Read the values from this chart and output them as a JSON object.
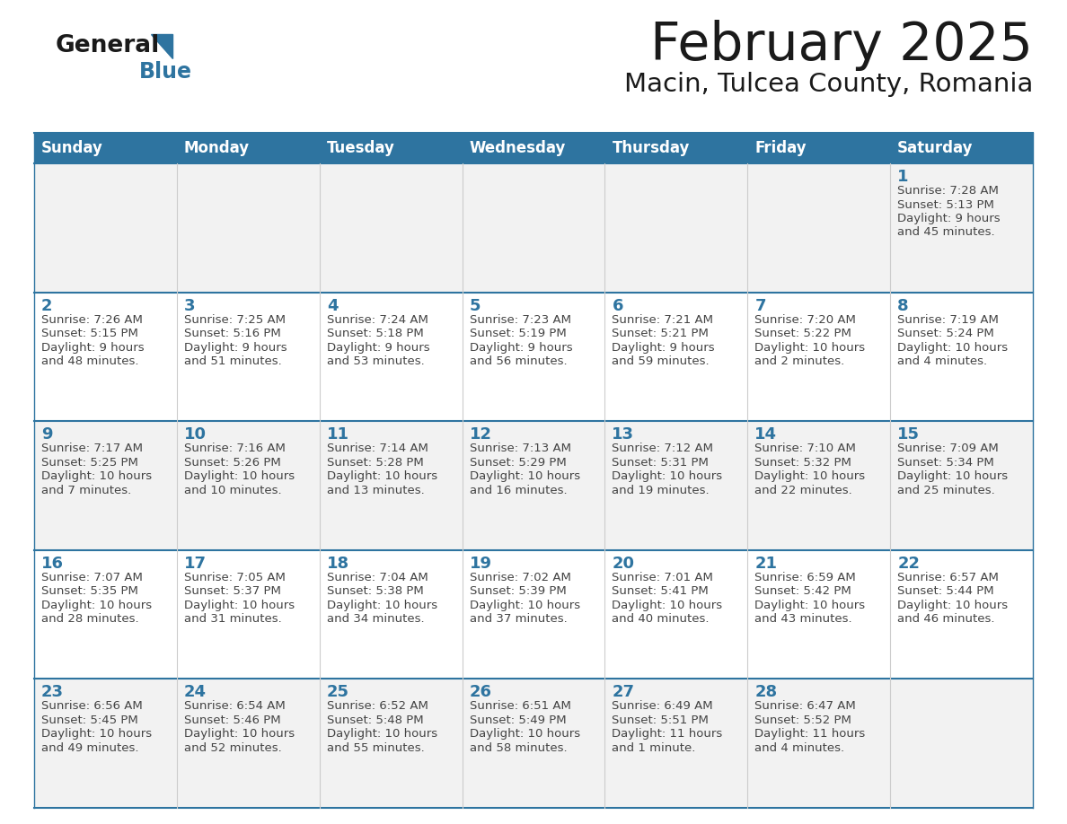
{
  "title": "February 2025",
  "subtitle": "Macin, Tulcea County, Romania",
  "days_of_week": [
    "Sunday",
    "Monday",
    "Tuesday",
    "Wednesday",
    "Thursday",
    "Friday",
    "Saturday"
  ],
  "header_bg": "#2E74A0",
  "header_text_color": "#FFFFFF",
  "separator_color": "#2E74A0",
  "title_color": "#1a1a1a",
  "subtitle_color": "#1a1a1a",
  "day_number_color": "#2E74A0",
  "cell_text_color": "#444444",
  "row_bg": [
    "#F2F2F2",
    "#FFFFFF",
    "#F2F2F2",
    "#FFFFFF",
    "#F2F2F2"
  ],
  "empty_row_bg": "#F2F2F2",
  "logo_general_color": "#1a1a1a",
  "logo_blue_color": "#2E74A0",
  "logo_triangle_color": "#2E74A0",
  "calendar_data": [
    [
      {
        "day": null,
        "sunrise": null,
        "sunset": null,
        "daylight": null
      },
      {
        "day": null,
        "sunrise": null,
        "sunset": null,
        "daylight": null
      },
      {
        "day": null,
        "sunrise": null,
        "sunset": null,
        "daylight": null
      },
      {
        "day": null,
        "sunrise": null,
        "sunset": null,
        "daylight": null
      },
      {
        "day": null,
        "sunrise": null,
        "sunset": null,
        "daylight": null
      },
      {
        "day": null,
        "sunrise": null,
        "sunset": null,
        "daylight": null
      },
      {
        "day": 1,
        "sunrise": "7:28 AM",
        "sunset": "5:13 PM",
        "daylight": "9 hours\nand 45 minutes."
      }
    ],
    [
      {
        "day": 2,
        "sunrise": "7:26 AM",
        "sunset": "5:15 PM",
        "daylight": "9 hours\nand 48 minutes."
      },
      {
        "day": 3,
        "sunrise": "7:25 AM",
        "sunset": "5:16 PM",
        "daylight": "9 hours\nand 51 minutes."
      },
      {
        "day": 4,
        "sunrise": "7:24 AM",
        "sunset": "5:18 PM",
        "daylight": "9 hours\nand 53 minutes."
      },
      {
        "day": 5,
        "sunrise": "7:23 AM",
        "sunset": "5:19 PM",
        "daylight": "9 hours\nand 56 minutes."
      },
      {
        "day": 6,
        "sunrise": "7:21 AM",
        "sunset": "5:21 PM",
        "daylight": "9 hours\nand 59 minutes."
      },
      {
        "day": 7,
        "sunrise": "7:20 AM",
        "sunset": "5:22 PM",
        "daylight": "10 hours\nand 2 minutes."
      },
      {
        "day": 8,
        "sunrise": "7:19 AM",
        "sunset": "5:24 PM",
        "daylight": "10 hours\nand 4 minutes."
      }
    ],
    [
      {
        "day": 9,
        "sunrise": "7:17 AM",
        "sunset": "5:25 PM",
        "daylight": "10 hours\nand 7 minutes."
      },
      {
        "day": 10,
        "sunrise": "7:16 AM",
        "sunset": "5:26 PM",
        "daylight": "10 hours\nand 10 minutes."
      },
      {
        "day": 11,
        "sunrise": "7:14 AM",
        "sunset": "5:28 PM",
        "daylight": "10 hours\nand 13 minutes."
      },
      {
        "day": 12,
        "sunrise": "7:13 AM",
        "sunset": "5:29 PM",
        "daylight": "10 hours\nand 16 minutes."
      },
      {
        "day": 13,
        "sunrise": "7:12 AM",
        "sunset": "5:31 PM",
        "daylight": "10 hours\nand 19 minutes."
      },
      {
        "day": 14,
        "sunrise": "7:10 AM",
        "sunset": "5:32 PM",
        "daylight": "10 hours\nand 22 minutes."
      },
      {
        "day": 15,
        "sunrise": "7:09 AM",
        "sunset": "5:34 PM",
        "daylight": "10 hours\nand 25 minutes."
      }
    ],
    [
      {
        "day": 16,
        "sunrise": "7:07 AM",
        "sunset": "5:35 PM",
        "daylight": "10 hours\nand 28 minutes."
      },
      {
        "day": 17,
        "sunrise": "7:05 AM",
        "sunset": "5:37 PM",
        "daylight": "10 hours\nand 31 minutes."
      },
      {
        "day": 18,
        "sunrise": "7:04 AM",
        "sunset": "5:38 PM",
        "daylight": "10 hours\nand 34 minutes."
      },
      {
        "day": 19,
        "sunrise": "7:02 AM",
        "sunset": "5:39 PM",
        "daylight": "10 hours\nand 37 minutes."
      },
      {
        "day": 20,
        "sunrise": "7:01 AM",
        "sunset": "5:41 PM",
        "daylight": "10 hours\nand 40 minutes."
      },
      {
        "day": 21,
        "sunrise": "6:59 AM",
        "sunset": "5:42 PM",
        "daylight": "10 hours\nand 43 minutes."
      },
      {
        "day": 22,
        "sunrise": "6:57 AM",
        "sunset": "5:44 PM",
        "daylight": "10 hours\nand 46 minutes."
      }
    ],
    [
      {
        "day": 23,
        "sunrise": "6:56 AM",
        "sunset": "5:45 PM",
        "daylight": "10 hours\nand 49 minutes."
      },
      {
        "day": 24,
        "sunrise": "6:54 AM",
        "sunset": "5:46 PM",
        "daylight": "10 hours\nand 52 minutes."
      },
      {
        "day": 25,
        "sunrise": "6:52 AM",
        "sunset": "5:48 PM",
        "daylight": "10 hours\nand 55 minutes."
      },
      {
        "day": 26,
        "sunrise": "6:51 AM",
        "sunset": "5:49 PM",
        "daylight": "10 hours\nand 58 minutes."
      },
      {
        "day": 27,
        "sunrise": "6:49 AM",
        "sunset": "5:51 PM",
        "daylight": "11 hours\nand 1 minute."
      },
      {
        "day": 28,
        "sunrise": "6:47 AM",
        "sunset": "5:52 PM",
        "daylight": "11 hours\nand 4 minutes."
      },
      {
        "day": null,
        "sunrise": null,
        "sunset": null,
        "daylight": null
      }
    ]
  ]
}
